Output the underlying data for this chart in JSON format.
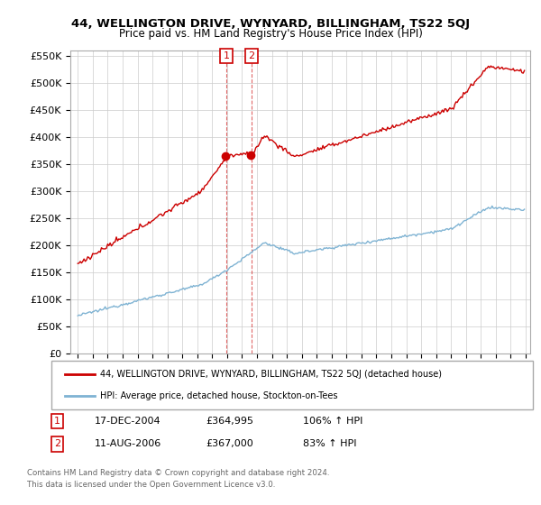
{
  "title": "44, WELLINGTON DRIVE, WYNYARD, BILLINGHAM, TS22 5QJ",
  "subtitle": "Price paid vs. HM Land Registry's House Price Index (HPI)",
  "legend_line1": "44, WELLINGTON DRIVE, WYNYARD, BILLINGHAM, TS22 5QJ (detached house)",
  "legend_line2": "HPI: Average price, detached house, Stockton-on-Tees",
  "sale1_date": "17-DEC-2004",
  "sale1_price": 364995,
  "sale2_date": "11-AUG-2006",
  "sale2_price": 367000,
  "sale1_hpi": "106% ↑ HPI",
  "sale2_hpi": "83% ↑ HPI",
  "footnote1": "Contains HM Land Registry data © Crown copyright and database right 2024.",
  "footnote2": "This data is licensed under the Open Government Licence v3.0.",
  "red_color": "#cc0000",
  "blue_color": "#7fb3d3",
  "label_color": "#cc0000",
  "grid_color": "#cccccc",
  "background_color": "#ffffff",
  "yticks": [
    0,
    50000,
    100000,
    150000,
    200000,
    250000,
    300000,
    350000,
    400000,
    450000,
    500000,
    550000
  ],
  "t_sale1": 2004.958,
  "t_sale2": 2006.625
}
